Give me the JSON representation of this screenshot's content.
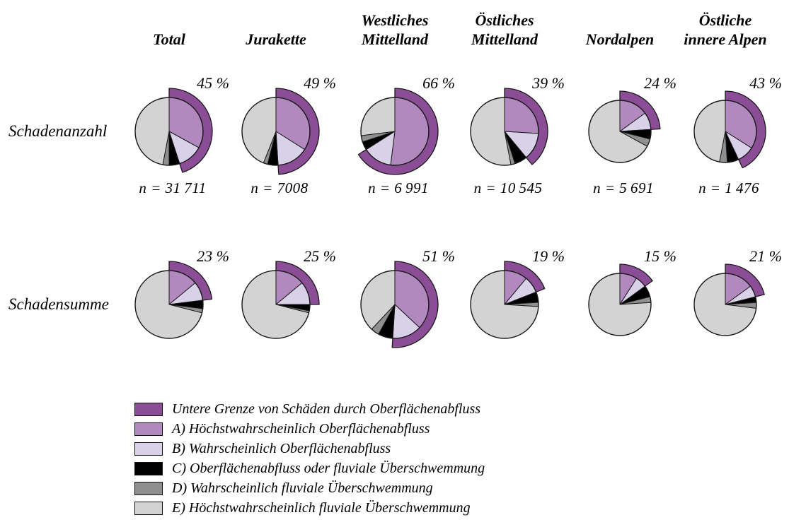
{
  "figure": {
    "row_labels": [
      "Schadenanzahl",
      "Schadensumme"
    ],
    "column_headers": [
      "Total",
      "Jurakette",
      "Westliches\nMittelland",
      "Östliches\nMittelland",
      "Nordalpen",
      "Östliche\ninnere Alpen"
    ]
  },
  "legend": {
    "items": [
      {
        "key": "arc",
        "color": "#8B4E96",
        "label": "Untere Grenze von Schäden durch Oberflächenabfluss"
      },
      {
        "key": "A",
        "color": "#B289BE",
        "label": "A) Höchstwahrscheinlich Oberflächenabfluss"
      },
      {
        "key": "B",
        "color": "#D8D1E8",
        "label": "B) Wahrscheinlich Oberflächenabfluss"
      },
      {
        "key": "C",
        "color": "#000000",
        "label": "C) Oberflächenabfluss oder fluviale Überschwemmung"
      },
      {
        "key": "D",
        "color": "#8F8F8F",
        "label": "D) Wahrscheinlich fluviale Überschwemmung"
      },
      {
        "key": "E",
        "color": "#D3D3D4",
        "label": "E) Höchstwahrscheinlich fluviale Überschwemmung"
      }
    ]
  },
  "chart_data": {
    "type": "pie",
    "unit": "%",
    "slice_order": [
      "A",
      "B",
      "C",
      "D",
      "E"
    ],
    "slice_colors": {
      "A": "#B289BE",
      "B": "#D8D1E8",
      "C": "#000000",
      "D": "#8F8F8F",
      "E": "#D3D3D4"
    },
    "outer_arc_color": "#8B4E96",
    "outer_arc_meaning": "Untere Grenze von Schäden durch Oberflächenabfluss",
    "legend_position": "bottom-left",
    "rows": [
      {
        "label": "Schadenanzahl",
        "pies": [
          {
            "region": "Total",
            "outer_arc_pct": 45,
            "pct_label": "45 %",
            "n": 31711,
            "n_label": "n = 31 711",
            "slices": {
              "A": 33,
              "B": 12,
              "C": 5,
              "D": 3,
              "E": 47
            }
          },
          {
            "region": "Jurakette",
            "outer_arc_pct": 49,
            "pct_label": "49 %",
            "n": 7008,
            "n_label": "n = 7008",
            "slices": {
              "A": 34,
              "B": 15,
              "C": 5,
              "D": 2,
              "E": 44
            }
          },
          {
            "region": "Westliches Mittelland",
            "outer_arc_pct": 66,
            "pct_label": "66 %",
            "n": 6991,
            "n_label": "n = 6 991",
            "slices": {
              "A": 52,
              "B": 14,
              "C": 4,
              "D": 3,
              "E": 27
            }
          },
          {
            "region": "Östliches Mittelland",
            "outer_arc_pct": 39,
            "pct_label": "39 %",
            "n": 10545,
            "n_label": "n = 10 545",
            "slices": {
              "A": 26,
              "B": 13,
              "C": 6,
              "D": 2,
              "E": 53
            }
          },
          {
            "region": "Nordalpen",
            "outer_arc_pct": 24,
            "pct_label": "24 %",
            "n": 5691,
            "n_label": "n = 5 691",
            "slices": {
              "A": 15,
              "B": 9,
              "C": 5,
              "D": 4,
              "E": 67
            }
          },
          {
            "region": "Östliche innere Alpen",
            "outer_arc_pct": 43,
            "pct_label": "43 %",
            "n": 1476,
            "n_label": "n = 1 476",
            "slices": {
              "A": 34,
              "B": 9,
              "C": 6,
              "D": 4,
              "E": 47
            }
          }
        ]
      },
      {
        "label": "Schadensumme",
        "pies": [
          {
            "region": "Total",
            "outer_arc_pct": 23,
            "pct_label": "23 %",
            "slices": {
              "A": 14,
              "B": 9,
              "C": 4,
              "D": 2,
              "E": 71
            }
          },
          {
            "region": "Jurakette",
            "outer_arc_pct": 25,
            "pct_label": "25 %",
            "slices": {
              "A": 14,
              "B": 11,
              "C": 3,
              "D": 1,
              "E": 71
            }
          },
          {
            "region": "Westliches Mittelland",
            "outer_arc_pct": 51,
            "pct_label": "51 %",
            "slices": {
              "A": 37,
              "B": 14,
              "C": 7,
              "D": 4,
              "E": 38
            }
          },
          {
            "region": "Östliches Mittelland",
            "outer_arc_pct": 19,
            "pct_label": "19 %",
            "slices": {
              "A": 11,
              "B": 8,
              "C": 5,
              "D": 2,
              "E": 74
            }
          },
          {
            "region": "Nordalpen",
            "outer_arc_pct": 15,
            "pct_label": "15 %",
            "slices": {
              "A": 9,
              "B": 6,
              "C": 6,
              "D": 3,
              "E": 76
            }
          },
          {
            "region": "Östliche innere Alpen",
            "outer_arc_pct": 21,
            "pct_label": "21 %",
            "slices": {
              "A": 15,
              "B": 6,
              "C": 3,
              "D": 3,
              "E": 73
            }
          }
        ]
      }
    ]
  }
}
